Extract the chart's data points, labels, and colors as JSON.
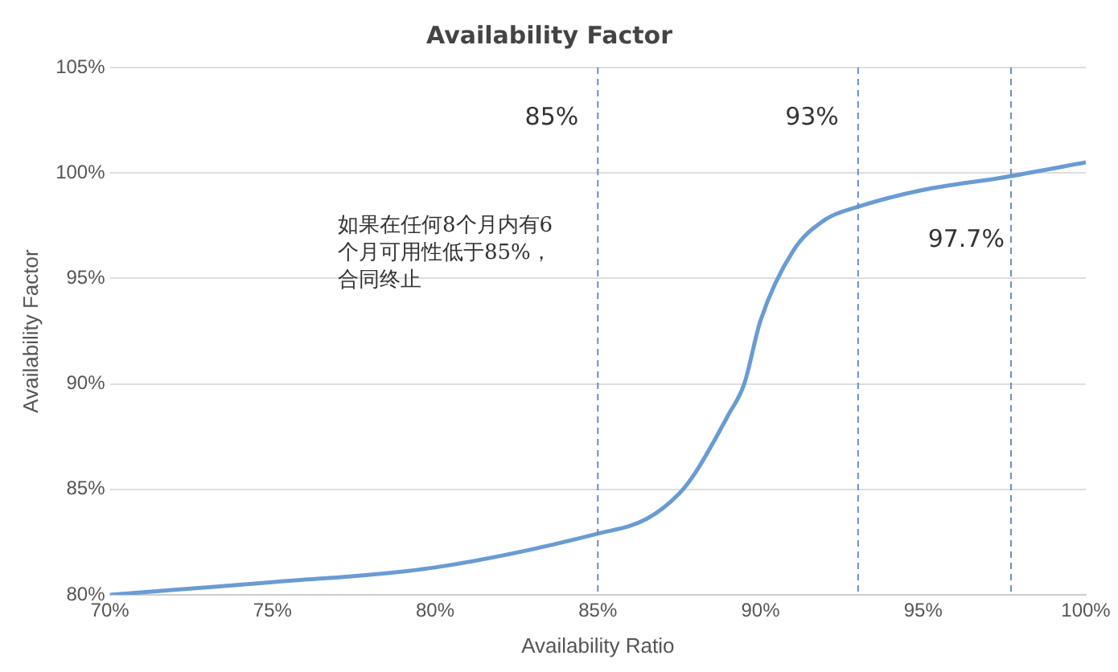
{
  "chart_data": {
    "type": "line",
    "title": "Availability Factor",
    "xlabel": "Availability Ratio",
    "ylabel": "Availability Factor",
    "x": [
      70,
      75,
      80,
      85,
      86.5,
      87.5,
      88,
      89,
      89.5,
      90,
      91,
      92,
      93,
      95,
      97.5,
      100
    ],
    "series": [
      {
        "color": "#6a9bd3",
        "values": [
          80,
          80.6,
          81.3,
          82.9,
          83.6,
          84.8,
          85.8,
          88.5,
          90,
          93,
          96.3,
          97.8,
          98.4,
          99.2,
          99.8,
          100.5
        ]
      }
    ],
    "xlim": [
      70,
      100
    ],
    "xticks": [
      {
        "value": 70,
        "label": "70%"
      },
      {
        "value": 75,
        "label": "75%"
      },
      {
        "value": 80,
        "label": "80%"
      },
      {
        "value": 85,
        "label": "85%"
      },
      {
        "value": 90,
        "label": "90%"
      },
      {
        "value": 95,
        "label": "95%"
      },
      {
        "value": 100,
        "label": "100%"
      }
    ],
    "ylim": [
      80,
      105
    ],
    "yticks": [
      {
        "value": 80,
        "label": "80%"
      },
      {
        "value": 85,
        "label": "85%"
      },
      {
        "value": 90,
        "label": "90%"
      },
      {
        "value": 95,
        "label": "95%"
      },
      {
        "value": 100,
        "label": "100%"
      },
      {
        "value": 105,
        "label": "105%"
      }
    ],
    "grid": "y",
    "marker": "none",
    "line_style": "solid",
    "legend": false,
    "ref_lines": [
      {
        "axis": "x",
        "value": 85,
        "label": "85%",
        "line_style": "dashed"
      },
      {
        "axis": "x",
        "value": 93,
        "label": "93%",
        "line_style": "dashed"
      },
      {
        "axis": "x",
        "value": 97.7,
        "label": "97.7%",
        "line_style": "dashed"
      }
    ],
    "annotations": [
      "如果在任何8个月内有6个月可用性低于85%，合同终止"
    ]
  }
}
